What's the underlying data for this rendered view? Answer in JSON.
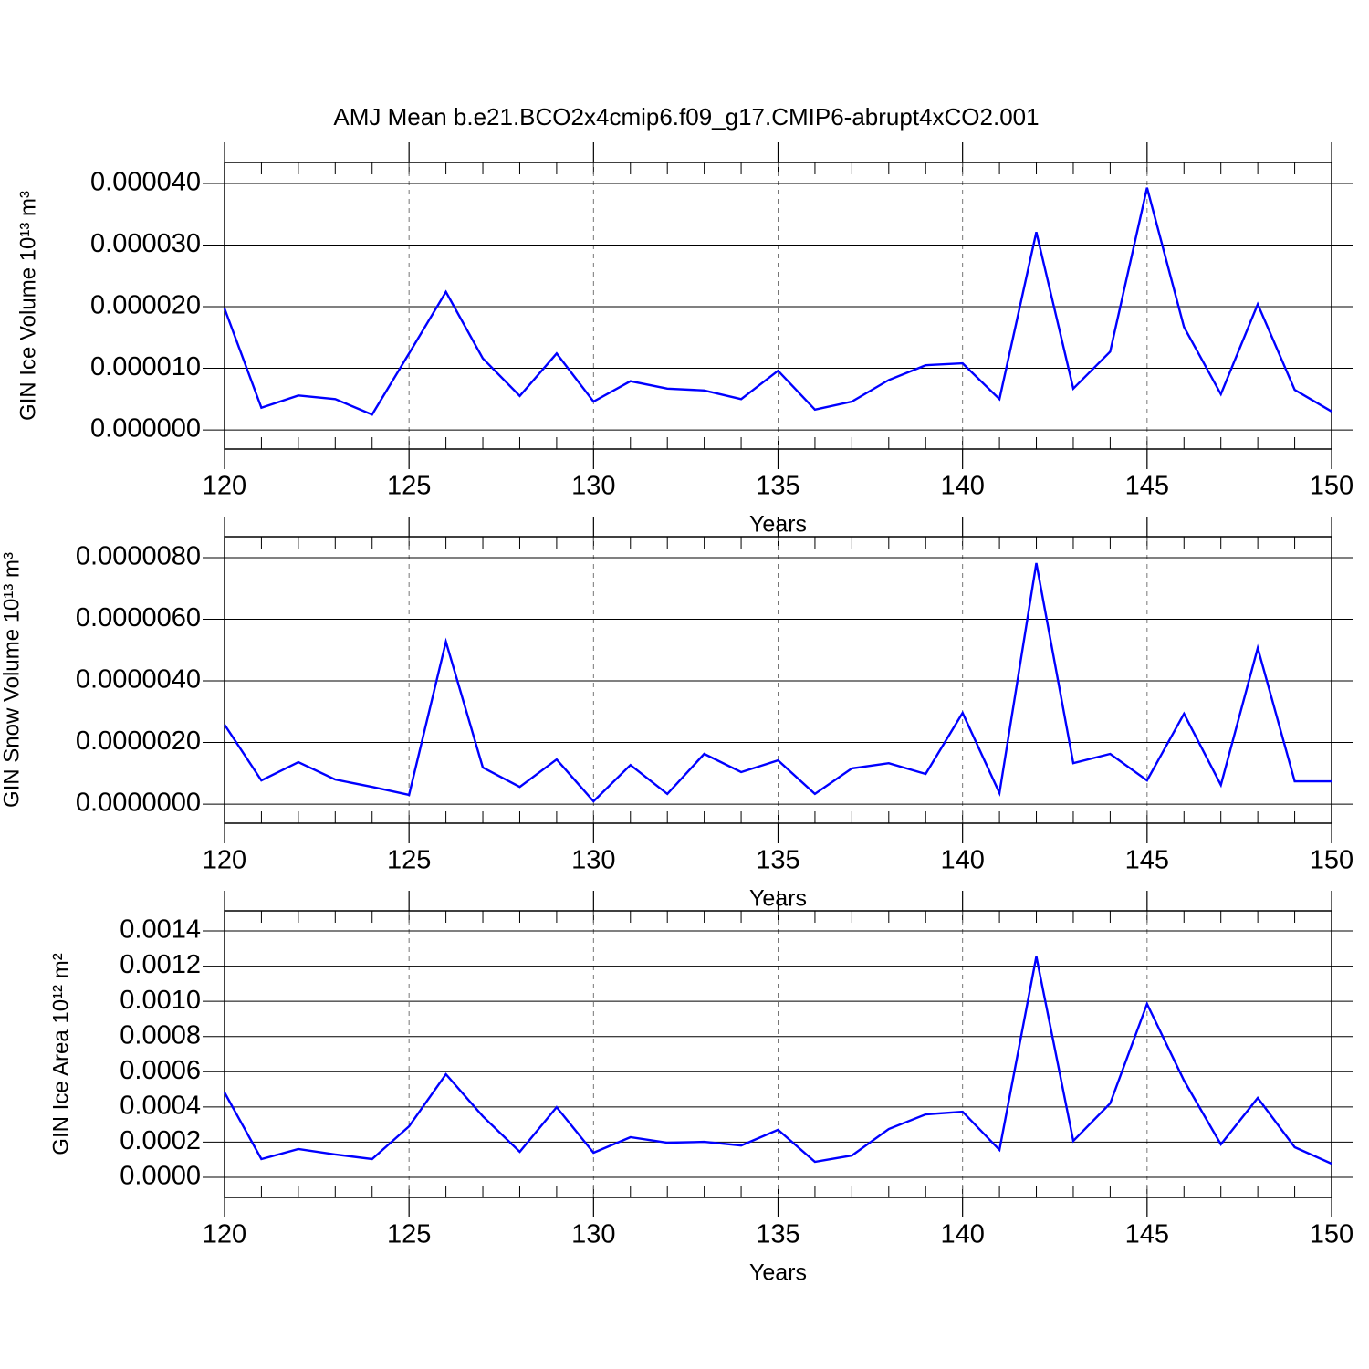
{
  "title": "AMJ Mean b.e21.BCO2x4cmip6.f09_g17.CMIP6-abrupt4xCO2.001",
  "chart_data": [
    {
      "type": "line",
      "xlabel": "Years",
      "ylabel": "GIN Ice Volume 10¹³ m³",
      "x": [
        120,
        121,
        122,
        123,
        124,
        125,
        126,
        127,
        128,
        129,
        130,
        131,
        132,
        133,
        134,
        135,
        136,
        137,
        138,
        139,
        140,
        141,
        142,
        143,
        144,
        145,
        146,
        147,
        148,
        149,
        150
      ],
      "series": [
        {
          "color": "#0000ff",
          "values": [
            1.97e-05,
            3.6e-06,
            5.6e-06,
            5e-06,
            2.5e-06,
            1.24e-05,
            2.24e-05,
            1.16e-05,
            5.5e-06,
            1.24e-05,
            4.6e-06,
            7.9e-06,
            6.7e-06,
            6.4e-06,
            5e-06,
            9.6e-06,
            3.3e-06,
            4.6e-06,
            8.1e-06,
            1.05e-05,
            1.08e-05,
            5e-06,
            3.21e-05,
            6.7e-06,
            1.27e-05,
            3.93e-05,
            1.67e-05,
            5.8e-06,
            2.04e-05,
            6.5e-06,
            3e-06
          ]
        }
      ],
      "xlim": [
        120,
        150
      ],
      "xticks": [
        120,
        125,
        130,
        135,
        140,
        145,
        150
      ],
      "xgrid": true,
      "ylim": [
        -3.1e-06,
        4.34e-05
      ],
      "yticks": [
        {
          "value": 0,
          "label": "0.000000"
        },
        {
          "value": 1e-05,
          "label": "0.000010"
        },
        {
          "value": 2e-05,
          "label": "0.000020"
        },
        {
          "value": 3e-05,
          "label": "0.000030"
        },
        {
          "value": 4e-05,
          "label": "0.000040"
        }
      ]
    },
    {
      "type": "line",
      "xlabel": "Years",
      "ylabel": "GIN Snow Volume 10¹³ m³",
      "x": [
        120,
        121,
        122,
        123,
        124,
        125,
        126,
        127,
        128,
        129,
        130,
        131,
        132,
        133,
        134,
        135,
        136,
        137,
        138,
        139,
        140,
        141,
        142,
        143,
        144,
        145,
        146,
        147,
        148,
        149,
        150
      ],
      "series": [
        {
          "color": "#0000ff",
          "values": [
            2.58e-06,
            7.7e-07,
            1.36e-06,
            8e-07,
            5.6e-07,
            3e-07,
            5.27e-06,
            1.19e-06,
            5.6e-07,
            1.45e-06,
            9e-08,
            1.27e-06,
            3.3e-07,
            1.63e-06,
            1.04e-06,
            1.42e-06,
            3.3e-07,
            1.16e-06,
            1.33e-06,
            9.8e-07,
            2.96e-06,
            3.6e-07,
            7.82e-06,
            1.33e-06,
            1.63e-06,
            7.7e-07,
            2.93e-06,
            6.2e-07,
            5.07e-06,
            7.4e-07,
            7.4e-07
          ]
        }
      ],
      "xlim": [
        120,
        150
      ],
      "xticks": [
        120,
        125,
        130,
        135,
        140,
        145,
        150
      ],
      "xgrid": true,
      "ylim": [
        -6.2e-07,
        8.68e-06
      ],
      "yticks": [
        {
          "value": 0,
          "label": "0.0000000"
        },
        {
          "value": 2e-06,
          "label": "0.0000020"
        },
        {
          "value": 4e-06,
          "label": "0.0000040"
        },
        {
          "value": 6e-06,
          "label": "0.0000060"
        },
        {
          "value": 8e-06,
          "label": "0.0000080"
        }
      ]
    },
    {
      "type": "line",
      "xlabel": "Years",
      "ylabel": "GIN Ice Area 10¹² m²",
      "x": [
        120,
        121,
        122,
        123,
        124,
        125,
        126,
        127,
        128,
        129,
        130,
        131,
        132,
        133,
        134,
        135,
        136,
        137,
        138,
        139,
        140,
        141,
        142,
        143,
        144,
        145,
        146,
        147,
        148,
        149,
        150
      ],
      "series": [
        {
          "color": "#0000ff",
          "values": [
            0.000482,
            0.000104,
            0.000161,
            0.00013,
            0.000104,
            0.00029,
            0.000586,
            0.000347,
            0.000145,
            0.000399,
            0.00014,
            0.000228,
            0.000197,
            0.000202,
            0.000181,
            0.00027,
            8.8e-05,
            0.000124,
            0.000275,
            0.000358,
            0.000373,
            0.000156,
            0.001255,
            0.000207,
            0.00042,
            0.000985,
            0.00055,
            0.000187,
            0.000451,
            0.000171,
            7.8e-05
          ]
        }
      ],
      "xlim": [
        120,
        150
      ],
      "xticks": [
        120,
        125,
        130,
        135,
        140,
        145,
        150
      ],
      "xgrid": true,
      "ylim": [
        -0.000114,
        0.001514
      ],
      "yticks": [
        {
          "value": 0,
          "label": "0.0000"
        },
        {
          "value": 0.0002,
          "label": "0.0002"
        },
        {
          "value": 0.0004,
          "label": "0.0004"
        },
        {
          "value": 0.0006,
          "label": "0.0006"
        },
        {
          "value": 0.0008,
          "label": "0.0008"
        },
        {
          "value": 0.001,
          "label": "0.0010"
        },
        {
          "value": 0.0012,
          "label": "0.0012"
        },
        {
          "value": 0.0014,
          "label": "0.0014"
        }
      ]
    }
  ]
}
